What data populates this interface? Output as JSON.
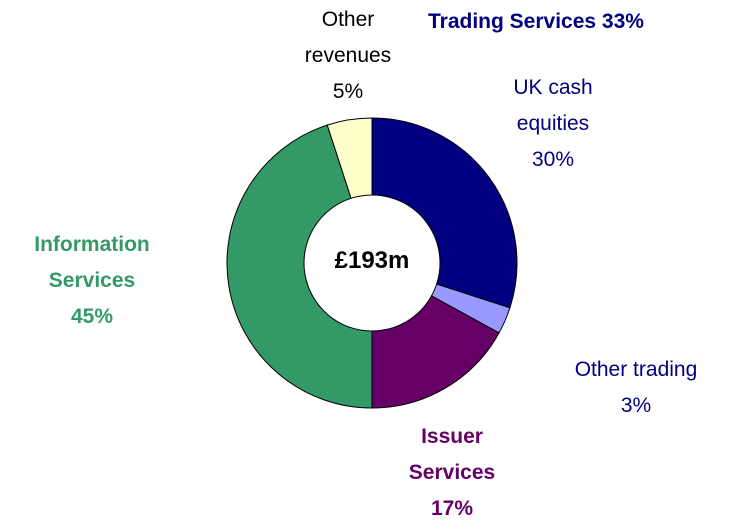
{
  "chart_data": {
    "type": "donut",
    "center_label": "£193m",
    "annotation": "Trading Services 33%",
    "categories": [
      "UK cash equities",
      "Other trading",
      "Issuer Services",
      "Information Services",
      "Other revenues"
    ],
    "values": [
      30,
      3,
      17,
      45,
      5
    ],
    "value_labels": [
      "30%",
      "3%",
      "17%",
      "45%",
      "5%"
    ],
    "colors": [
      "#000080",
      "#9999ff",
      "#660066",
      "#339966",
      "#ffffcc"
    ]
  }
}
